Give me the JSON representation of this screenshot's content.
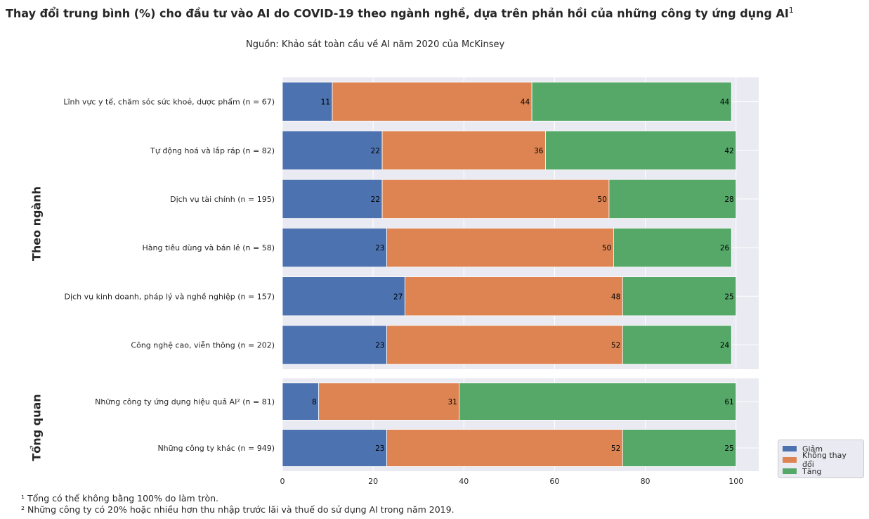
{
  "header": {
    "title": "Thay đổi trung bình (%) cho đầu tư vào AI do COVID-19 theo ngành nghề, dựa trên phản hồi của những công ty ứng dụng AI",
    "title_sup": "1",
    "subtitle": "Nguồn: Khảo sát toàn cầu về AI năm 2020 của McKinsey"
  },
  "footnotes": {
    "note1": "¹ Tổng có thể không bằng 100% do làm tròn.",
    "note2": "² Những công ty có 20% hoặc nhiều hơn thu nhập trước lãi và thuế do sử dụng AI trong năm 2019."
  },
  "chart_data": [
    {
      "type": "bar",
      "orientation": "horizontal",
      "stacked": true,
      "group_label": "Theo ngành",
      "categories": [
        "Lĩnh vực y tế, chăm sóc sức khoẻ, dược phẩm (n = 67)",
        "Tự động hoá và lắp ráp (n = 82)",
        "Dịch vụ tài chính (n = 195)",
        "Hàng tiêu dùng và bán lẻ (n = 58)",
        "Dịch vụ kinh doanh, pháp lý và nghề nghiệp (n = 157)",
        "Công nghệ cao, viễn thông (n = 202)"
      ],
      "series": [
        {
          "name": "Giảm",
          "color": "#4c72b0",
          "values": [
            11,
            22,
            22,
            23,
            27,
            23
          ]
        },
        {
          "name": "Không thay đổi",
          "color": "#dd8452",
          "values": [
            44,
            36,
            50,
            50,
            48,
            52
          ]
        },
        {
          "name": "Tăng",
          "color": "#55a868",
          "values": [
            44,
            42,
            28,
            26,
            25,
            24
          ]
        }
      ],
      "xlim": [
        0,
        105
      ],
      "grid": true
    },
    {
      "type": "bar",
      "orientation": "horizontal",
      "stacked": true,
      "group_label": "Tổng quan",
      "categories": [
        "Những công ty ứng dụng hiệu quả AI² (n = 81)",
        "Những công ty khác (n = 949)"
      ],
      "series": [
        {
          "name": "Giảm",
          "color": "#4c72b0",
          "values": [
            8,
            23
          ]
        },
        {
          "name": "Không thay đổi",
          "color": "#dd8452",
          "values": [
            31,
            52
          ]
        },
        {
          "name": "Tăng",
          "color": "#55a868",
          "values": [
            61,
            25
          ]
        }
      ],
      "xlim": [
        0,
        105
      ],
      "xticks": [
        0,
        20,
        40,
        60,
        80,
        100
      ],
      "grid": true
    }
  ],
  "legend": {
    "position": "lower-right",
    "items": [
      {
        "label": "Giảm",
        "color": "#4c72b0"
      },
      {
        "label": "Không thay đổi",
        "color": "#dd8452"
      },
      {
        "label": "Tăng",
        "color": "#55a868"
      }
    ]
  }
}
